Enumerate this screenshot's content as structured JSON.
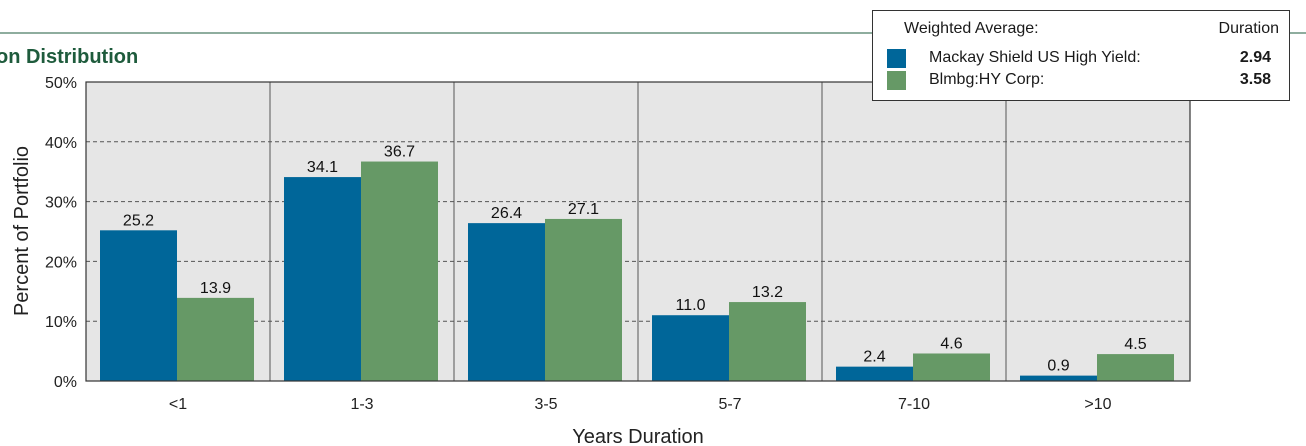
{
  "chart_data": {
    "type": "bar",
    "title": "on Distribution",
    "xlabel": "Years Duration",
    "ylabel": "Percent of Portfolio",
    "categories": [
      "<1",
      "1-3",
      "3-5",
      "5-7",
      "7-10",
      ">10"
    ],
    "ylim": [
      0,
      50
    ],
    "yticks": [
      "0%",
      "10%",
      "20%",
      "30%",
      "40%",
      "50%"
    ],
    "ytick_values": [
      0,
      10,
      20,
      30,
      40,
      50
    ],
    "grid": "horizontal dashed",
    "series": [
      {
        "name": "Mackay Shield US High Yield",
        "color": "#006699",
        "values": [
          25.2,
          34.1,
          26.4,
          11.0,
          2.4,
          0.9
        ],
        "labels": [
          "25.2",
          "34.1",
          "26.4",
          "11.0",
          "2.4",
          "0.9"
        ]
      },
      {
        "name": "Blmbg:HY Corp",
        "color": "#669966",
        "values": [
          13.9,
          36.7,
          27.1,
          13.2,
          4.6,
          4.5
        ],
        "labels": [
          "13.9",
          "36.7",
          "27.1",
          "13.2",
          "4.6",
          "4.5"
        ]
      }
    ]
  },
  "legend": {
    "header_left": "Weighted Average:",
    "header_right": "Duration",
    "placement": "top-right",
    "rows": [
      {
        "name": "Mackay Shield US High Yield:",
        "value": "2.94",
        "color": "#006699"
      },
      {
        "name": "Blmbg:HY Corp:",
        "value": "3.58",
        "color": "#669966"
      }
    ]
  },
  "colors": {
    "title": "#1e5b3c",
    "plot_background": "#e6e6e6",
    "header_rule": "#1e5b3c"
  }
}
